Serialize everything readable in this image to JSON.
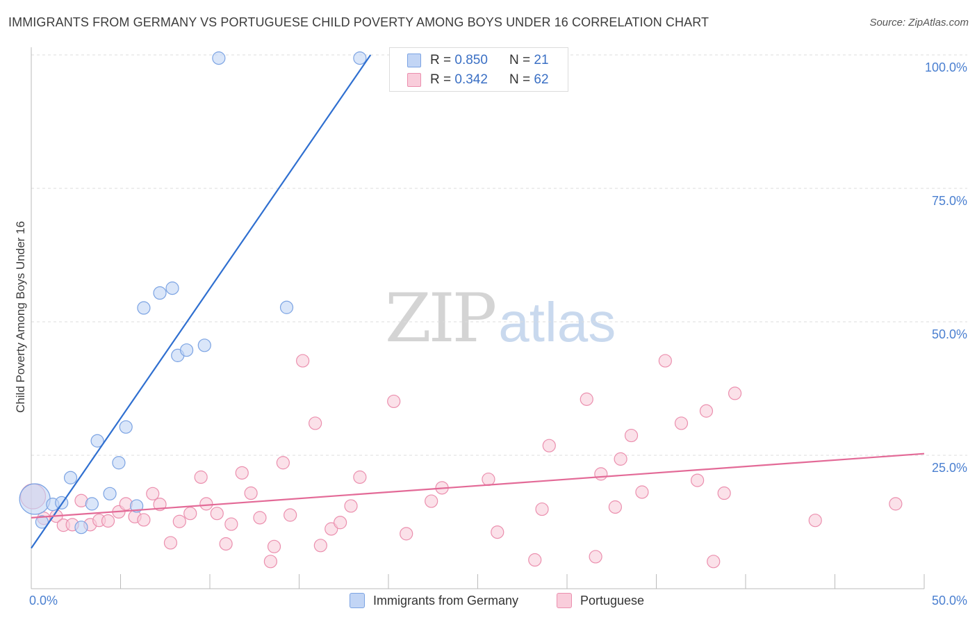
{
  "title": "IMMIGRANTS FROM GERMANY VS PORTUGUESE CHILD POVERTY AMONG BOYS UNDER 16 CORRELATION CHART",
  "source": "Source: ZipAtlas.com",
  "watermark": {
    "part1": "ZIP",
    "part2": "atlas"
  },
  "colors": {
    "blue_fill": "#c2d5f5",
    "blue_stroke": "#7ba3e3",
    "blue_line": "#2f6fd0",
    "pink_fill": "#f9cddb",
    "pink_stroke": "#eb8fae",
    "pink_line": "#e36a97",
    "tick_text": "#4a7fd0",
    "grid": "#dddddd"
  },
  "legend": {
    "series": [
      {
        "r_label": "R = ",
        "r_value": "0.850",
        "n_label": "N = ",
        "n_value": "21"
      },
      {
        "r_label": "R = ",
        "r_value": "0.342",
        "n_label": "N = ",
        "n_value": "62"
      }
    ]
  },
  "chart_data": {
    "type": "scatter",
    "title": "IMMIGRANTS FROM GERMANY VS PORTUGUESE CHILD POVERTY AMONG BOYS UNDER 16 CORRELATION CHART",
    "xlabel": "",
    "ylabel": "Child Poverty Among Boys Under 16",
    "xlim": [
      0,
      50
    ],
    "ylim": [
      0,
      100
    ],
    "x_tick_labels": [
      "0.0%",
      "50.0%"
    ],
    "y_tick_labels": [
      {
        "value": 25,
        "label": "25.0%"
      },
      {
        "value": 50,
        "label": "50.0%"
      },
      {
        "value": 75,
        "label": "75.0%"
      },
      {
        "value": 100,
        "label": "100.0%"
      }
    ],
    "legend_position": "bottom",
    "series": [
      {
        "name": "Immigrants from Germany",
        "color": "blue",
        "points": [
          [
            0.2,
            16.8,
            22
          ],
          [
            0.6,
            12.5,
            9
          ],
          [
            1.2,
            15.8,
            9
          ],
          [
            1.7,
            16.1,
            9
          ],
          [
            2.2,
            20.8,
            9
          ],
          [
            2.8,
            11.5,
            9
          ],
          [
            3.4,
            15.9,
            9
          ],
          [
            3.7,
            27.7,
            9
          ],
          [
            4.4,
            17.8,
            9
          ],
          [
            4.9,
            23.6,
            9
          ],
          [
            5.3,
            30.3,
            9
          ],
          [
            5.9,
            15.5,
            9
          ],
          [
            6.3,
            52.6,
            9
          ],
          [
            7.2,
            55.4,
            9
          ],
          [
            7.9,
            56.3,
            9
          ],
          [
            8.2,
            43.7,
            9
          ],
          [
            8.7,
            44.7,
            9
          ],
          [
            9.7,
            45.6,
            9
          ],
          [
            10.5,
            99.4,
            9
          ],
          [
            14.3,
            52.7,
            9
          ],
          [
            18.4,
            99.4,
            9
          ]
        ],
        "trend": {
          "x1": 0,
          "y1": 7.6,
          "x2": 19.0,
          "y2": 100
        }
      },
      {
        "name": "Portuguese",
        "color": "pink",
        "points": [
          [
            0.1,
            17.3,
            18
          ],
          [
            0.7,
            13.2,
            9
          ],
          [
            1.4,
            13.6,
            9
          ],
          [
            1.8,
            11.9,
            9
          ],
          [
            2.3,
            12.0,
            9
          ],
          [
            2.8,
            16.5,
            9
          ],
          [
            3.3,
            12.0,
            9
          ],
          [
            3.8,
            12.8,
            9
          ],
          [
            4.3,
            12.7,
            9
          ],
          [
            4.9,
            14.4,
            9
          ],
          [
            5.3,
            15.9,
            9
          ],
          [
            5.8,
            13.5,
            9
          ],
          [
            6.3,
            12.9,
            9
          ],
          [
            6.8,
            17.8,
            9
          ],
          [
            7.2,
            15.8,
            9
          ],
          [
            7.8,
            8.6,
            9
          ],
          [
            8.3,
            12.6,
            9
          ],
          [
            8.9,
            14.1,
            9
          ],
          [
            9.5,
            20.9,
            9
          ],
          [
            9.8,
            15.9,
            9
          ],
          [
            10.4,
            14.1,
            9
          ],
          [
            10.9,
            8.4,
            9
          ],
          [
            11.2,
            12.1,
            9
          ],
          [
            11.8,
            21.7,
            9
          ],
          [
            12.3,
            17.9,
            9
          ],
          [
            12.8,
            13.3,
            9
          ],
          [
            13.4,
            5.1,
            9
          ],
          [
            13.6,
            7.9,
            9
          ],
          [
            14.1,
            23.6,
            9
          ],
          [
            14.5,
            13.8,
            9
          ],
          [
            15.2,
            42.7,
            9
          ],
          [
            15.9,
            31.0,
            9
          ],
          [
            16.2,
            8.1,
            9
          ],
          [
            16.8,
            11.2,
            9
          ],
          [
            17.3,
            12.4,
            9
          ],
          [
            17.9,
            15.5,
            9
          ],
          [
            18.4,
            20.9,
            9
          ],
          [
            20.3,
            35.1,
            9
          ],
          [
            21.0,
            10.3,
            9
          ],
          [
            22.4,
            16.4,
            9
          ],
          [
            23.0,
            18.9,
            9
          ],
          [
            25.6,
            20.5,
            9
          ],
          [
            26.1,
            10.6,
            9
          ],
          [
            28.2,
            5.4,
            9
          ],
          [
            28.6,
            14.9,
            9
          ],
          [
            29.0,
            26.8,
            9
          ],
          [
            31.1,
            35.5,
            9
          ],
          [
            31.6,
            6.0,
            9
          ],
          [
            31.9,
            21.5,
            9
          ],
          [
            32.7,
            15.3,
            9
          ],
          [
            33.0,
            24.3,
            9
          ],
          [
            33.6,
            28.7,
            9
          ],
          [
            34.2,
            18.1,
            9
          ],
          [
            35.5,
            42.7,
            9
          ],
          [
            36.4,
            31.0,
            9
          ],
          [
            37.3,
            20.3,
            9
          ],
          [
            37.8,
            33.3,
            9
          ],
          [
            38.2,
            5.1,
            9
          ],
          [
            38.8,
            17.9,
            9
          ],
          [
            39.4,
            36.6,
            9
          ],
          [
            43.9,
            12.8,
            9
          ],
          [
            48.4,
            15.9,
            9
          ]
        ],
        "trend": {
          "x1": 0,
          "y1": 13.3,
          "x2": 50.0,
          "y2": 25.3
        }
      }
    ]
  }
}
